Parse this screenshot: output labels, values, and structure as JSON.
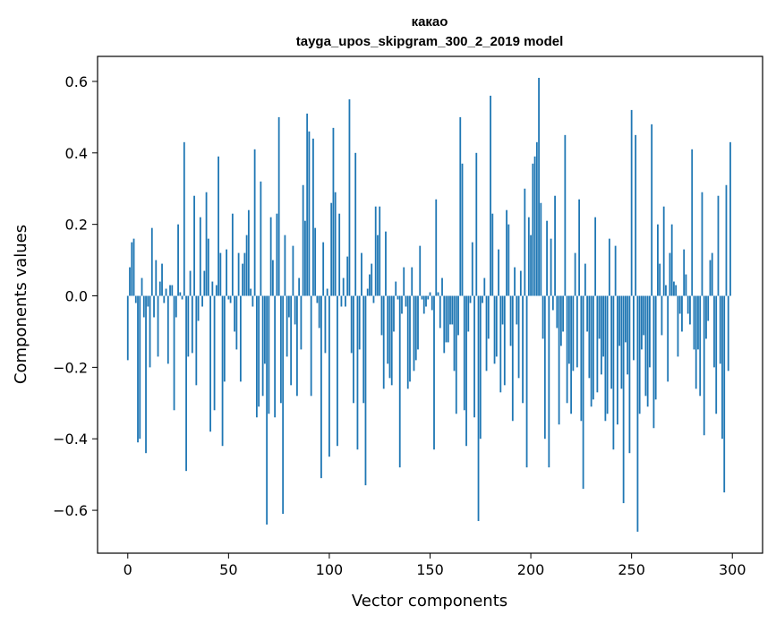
{
  "chart_data": {
    "type": "bar",
    "title": "какао",
    "subtitle": "tayga_upos_skipgram_300_2_2019 model",
    "xlabel": "Vector components",
    "ylabel": "Components values",
    "xlim": [
      -15,
      315
    ],
    "ylim": [
      -0.72,
      0.67
    ],
    "xticks": [
      0,
      50,
      100,
      150,
      200,
      250,
      300
    ],
    "yticks": [
      -0.6,
      -0.4,
      -0.2,
      0.0,
      0.2,
      0.4,
      0.6
    ],
    "ytick_labels": [
      "−0.6",
      "−0.4",
      "−0.2",
      "0.0",
      "0.2",
      "0.4",
      "0.6"
    ],
    "grid": false,
    "bar_color": "#1f77b4",
    "values": [
      -0.18,
      0.08,
      0.15,
      0.16,
      -0.02,
      -0.41,
      -0.4,
      0.05,
      -0.06,
      -0.44,
      -0.03,
      -0.2,
      0.19,
      -0.06,
      0.1,
      -0.17,
      0.04,
      0.09,
      -0.02,
      0.02,
      -0.19,
      0.03,
      0.03,
      -0.32,
      -0.06,
      0.2,
      0.01,
      -0.01,
      0.43,
      -0.49,
      -0.17,
      0.07,
      -0.16,
      0.28,
      -0.25,
      -0.07,
      0.22,
      -0.03,
      0.07,
      0.29,
      0.16,
      -0.38,
      0.04,
      -0.32,
      0.03,
      0.39,
      0.12,
      -0.42,
      -0.24,
      0.13,
      -0.01,
      -0.02,
      0.23,
      -0.1,
      -0.15,
      0.12,
      -0.24,
      0.09,
      0.12,
      0.17,
      0.24,
      0.02,
      -0.03,
      0.41,
      -0.34,
      -0.31,
      0.32,
      -0.28,
      -0.19,
      -0.64,
      -0.33,
      0.22,
      0.1,
      -0.34,
      0.23,
      0.5,
      -0.3,
      -0.61,
      0.17,
      -0.17,
      -0.06,
      -0.25,
      0.14,
      -0.08,
      -0.28,
      0.05,
      -0.15,
      0.31,
      0.21,
      0.51,
      0.46,
      -0.28,
      0.44,
      0.19,
      -0.02,
      -0.09,
      -0.51,
      0.15,
      -0.16,
      0.02,
      -0.45,
      0.26,
      0.47,
      0.29,
      -0.42,
      0.23,
      -0.03,
      0.05,
      -0.03,
      0.11,
      0.55,
      -0.16,
      -0.3,
      0.4,
      -0.43,
      -0.15,
      0.12,
      -0.3,
      -0.53,
      0.02,
      0.06,
      0.09,
      -0.02,
      0.25,
      0.17,
      0.25,
      -0.11,
      -0.26,
      0.18,
      -0.19,
      -0.23,
      -0.25,
      -0.1,
      0.04,
      -0.01,
      -0.48,
      -0.05,
      0.08,
      -0.03,
      -0.26,
      -0.24,
      0.08,
      -0.21,
      -0.18,
      -0.15,
      0.14,
      -0.01,
      -0.05,
      -0.03,
      -0.01,
      0.01,
      -0.04,
      -0.43,
      0.27,
      0.01,
      -0.09,
      0.05,
      -0.16,
      -0.13,
      -0.13,
      -0.08,
      -0.08,
      -0.21,
      -0.33,
      -0.11,
      0.5,
      0.37,
      -0.32,
      -0.42,
      -0.1,
      -0.02,
      0.15,
      -0.34,
      0.4,
      -0.63,
      -0.4,
      -0.02,
      0.05,
      -0.21,
      -0.12,
      0.56,
      0.23,
      -0.19,
      -0.17,
      0.13,
      -0.27,
      -0.08,
      -0.25,
      0.24,
      0.2,
      -0.14,
      -0.35,
      0.08,
      -0.08,
      -0.23,
      0.07,
      -0.3,
      0.3,
      -0.48,
      0.22,
      0.17,
      0.37,
      0.39,
      0.43,
      0.61,
      0.26,
      -0.12,
      -0.4,
      0.21,
      -0.48,
      0.16,
      -0.04,
      0.28,
      -0.09,
      -0.36,
      -0.14,
      -0.1,
      0.45,
      -0.3,
      -0.19,
      -0.33,
      -0.21,
      0.12,
      -0.2,
      0.27,
      -0.35,
      -0.54,
      0.09,
      -0.1,
      -0.23,
      -0.31,
      -0.29,
      0.22,
      -0.27,
      -0.12,
      -0.22,
      -0.17,
      -0.35,
      -0.33,
      0.16,
      -0.26,
      -0.43,
      0.14,
      -0.36,
      -0.14,
      -0.26,
      -0.58,
      -0.13,
      -0.22,
      -0.44,
      0.52,
      -0.18,
      0.45,
      -0.66,
      -0.33,
      -0.15,
      -0.11,
      -0.28,
      -0.31,
      -0.2,
      0.48,
      -0.37,
      -0.29,
      0.2,
      0.09,
      -0.11,
      0.25,
      0.03,
      -0.24,
      0.12,
      0.2,
      0.04,
      0.03,
      -0.17,
      -0.05,
      -0.1,
      0.13,
      0.06,
      -0.05,
      -0.08,
      0.41,
      -0.15,
      -0.26,
      -0.15,
      -0.28,
      0.29,
      -0.39,
      -0.12,
      -0.07,
      0.1,
      0.12,
      -0.2,
      -0.33,
      0.28,
      -0.19,
      -0.4,
      -0.55,
      0.31,
      -0.21,
      0.43
    ]
  }
}
